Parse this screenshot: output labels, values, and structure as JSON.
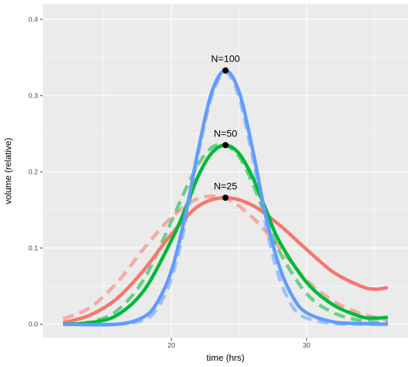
{
  "chart_data": {
    "type": "line",
    "xlabel": "time (hrs)",
    "ylabel": "volume (relative)",
    "xlim": [
      10.5,
      37.5
    ],
    "ylim": [
      -0.018,
      0.42
    ],
    "x_ticks": [
      20,
      30
    ],
    "x_tick_labels": [
      "20",
      "30"
    ],
    "y_ticks": [
      0.0,
      0.1,
      0.2,
      0.3,
      0.4
    ],
    "y_tick_labels": [
      "0.0",
      "0.1",
      "0.2",
      "0.3",
      "0.4"
    ],
    "grid": true,
    "legend": "none",
    "background_color": "#ebebeb",
    "grid_color": "#ffffff",
    "series": [
      {
        "style": "solid",
        "color": "#f8766d",
        "x": [
          12,
          14,
          16,
          18,
          20,
          22,
          24,
          26,
          28,
          30,
          32,
          34,
          35,
          36
        ],
        "y": [
          0.002,
          0.012,
          0.034,
          0.072,
          0.118,
          0.155,
          0.166,
          0.156,
          0.13,
          0.098,
          0.068,
          0.05,
          0.046,
          0.048
        ]
      },
      {
        "style": "dashed",
        "color": "#f8766d",
        "x": [
          12,
          14,
          16,
          18,
          20,
          22,
          24,
          26,
          28,
          30,
          32,
          34,
          36
        ],
        "y": [
          0.007,
          0.022,
          0.055,
          0.1,
          0.14,
          0.165,
          0.165,
          0.14,
          0.1,
          0.058,
          0.03,
          0.014,
          0.005
        ]
      },
      {
        "style": "solid",
        "color": "#00ba38",
        "x": [
          12,
          14,
          16,
          18,
          20,
          21,
          22,
          23,
          24,
          25,
          26,
          27,
          28,
          30,
          32,
          34,
          35,
          36
        ],
        "y": [
          0.0,
          0.002,
          0.012,
          0.045,
          0.11,
          0.15,
          0.195,
          0.225,
          0.235,
          0.224,
          0.193,
          0.15,
          0.108,
          0.055,
          0.025,
          0.01,
          0.008,
          0.009
        ]
      },
      {
        "style": "dashed",
        "color": "#00ba38",
        "x": [
          12,
          14,
          16,
          18,
          20,
          21,
          22,
          23,
          24,
          25,
          26,
          27,
          28,
          30,
          32,
          34,
          36
        ],
        "y": [
          0.0,
          0.003,
          0.018,
          0.06,
          0.135,
          0.175,
          0.21,
          0.232,
          0.235,
          0.22,
          0.185,
          0.14,
          0.095,
          0.04,
          0.015,
          0.005,
          0.002
        ]
      },
      {
        "style": "solid",
        "color": "#619cff",
        "x": [
          12,
          16,
          18,
          19,
          20,
          21,
          22,
          23,
          24,
          25,
          26,
          27,
          28,
          29,
          30,
          32,
          34,
          36
        ],
        "y": [
          0.0,
          0.0,
          0.01,
          0.03,
          0.07,
          0.14,
          0.23,
          0.305,
          0.333,
          0.305,
          0.23,
          0.14,
          0.075,
          0.035,
          0.015,
          0.003,
          0.001,
          0.0
        ]
      },
      {
        "style": "dashed",
        "color": "#619cff",
        "x": [
          12,
          16,
          18,
          19,
          20,
          21,
          22,
          23,
          24,
          25,
          26,
          27,
          28,
          29,
          30,
          32,
          34,
          36
        ],
        "y": [
          0.0,
          0.0,
          0.006,
          0.022,
          0.06,
          0.13,
          0.225,
          0.3,
          0.33,
          0.298,
          0.22,
          0.128,
          0.06,
          0.022,
          0.008,
          0.001,
          0.0,
          0.0
        ]
      }
    ],
    "points": [
      {
        "label": "N=25",
        "x": 24,
        "y": 0.166
      },
      {
        "label": "N=50",
        "x": 24,
        "y": 0.235
      },
      {
        "label": "N=100",
        "x": 24,
        "y": 0.333
      }
    ]
  }
}
